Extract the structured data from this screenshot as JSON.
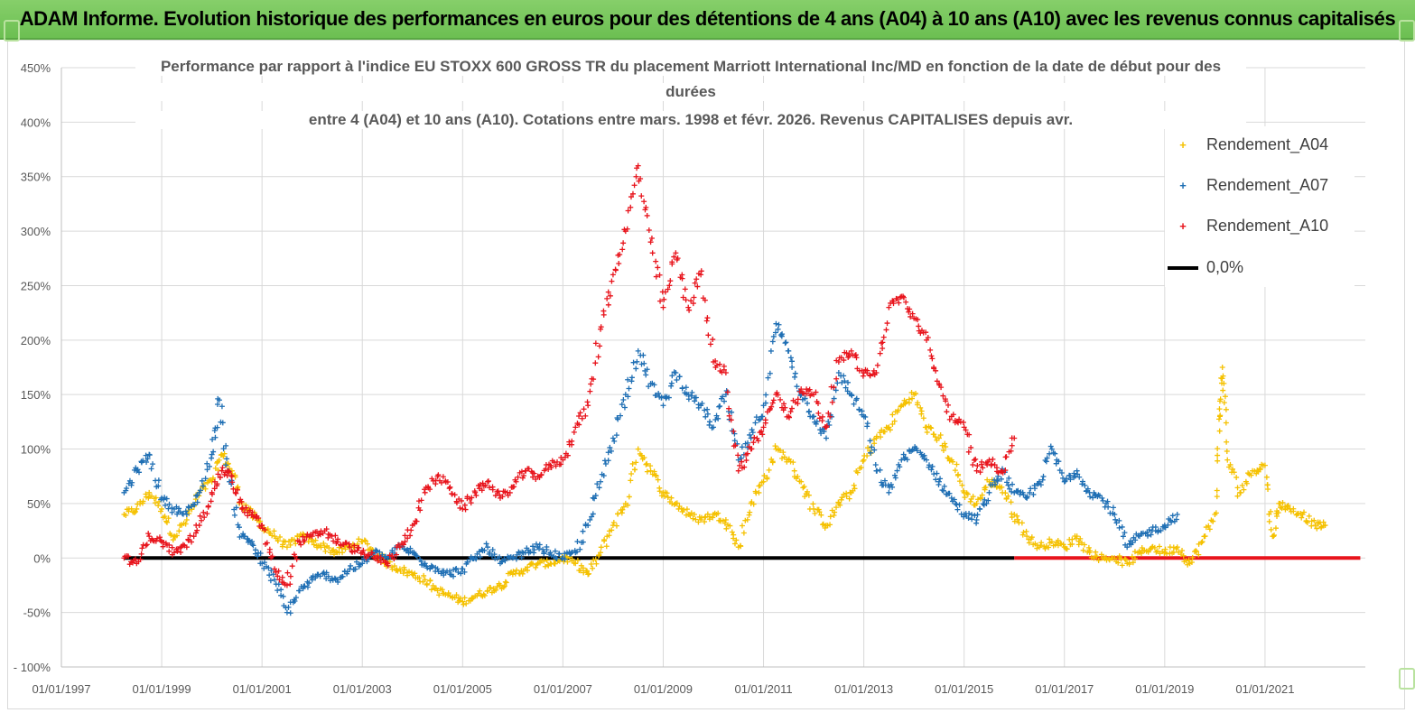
{
  "page": {
    "banner_title": "ADAM Informe. Evolution historique des performances en euros pour des détentions de 4 ans (A04) à 10 ans (A10) avec les revenus connus capitalisés"
  },
  "chart_data": {
    "type": "scatter",
    "title_lines": [
      "Performance par rapport à l'indice EU STOXX 600 GROSS TR  du placement Marriott International Inc/MD en fonction de la date de début pour des",
      "durées",
      "entre 4 (A04) et 10 ans (A10). Cotations entre mars. 1998 et févr. 2026. Revenus CAPITALISES depuis avr."
    ],
    "xlabel": "",
    "ylabel": "",
    "xlim": [
      1997.0,
      2023.0
    ],
    "ylim": [
      -100,
      450
    ],
    "y_ticks": [
      -100,
      -50,
      0,
      50,
      100,
      150,
      200,
      250,
      300,
      350,
      400,
      450
    ],
    "y_tick_labels": [
      "- 100%",
      "-50%",
      "0%",
      "50%",
      "100%",
      "150%",
      "200%",
      "250%",
      "300%",
      "350%",
      "400%",
      "450%"
    ],
    "x_ticks": [
      1997,
      1999,
      2001,
      2003,
      2005,
      2007,
      2009,
      2011,
      2013,
      2015,
      2017,
      2019,
      2021
    ],
    "x_tick_labels": [
      "01/01/1997",
      "01/01/1999",
      "01/01/2001",
      "01/01/2003",
      "01/01/2005",
      "01/01/2007",
      "01/01/2009",
      "01/01/2011",
      "01/01/2013",
      "01/01/2015",
      "01/01/2017",
      "01/01/2019",
      "01/01/2021"
    ],
    "grid": true,
    "legend_position": "top-right",
    "series": [
      {
        "name": "Rendement_A04",
        "color": "#f5c100",
        "marker": "+",
        "points": [
          [
            1998.25,
            40
          ],
          [
            1998.5,
            45
          ],
          [
            1998.75,
            60
          ],
          [
            1999.0,
            45
          ],
          [
            1999.25,
            20
          ],
          [
            1999.5,
            35
          ],
          [
            1999.75,
            60
          ],
          [
            2000.0,
            70
          ],
          [
            2000.2,
            95
          ],
          [
            2000.4,
            80
          ],
          [
            2000.6,
            50
          ],
          [
            2000.8,
            40
          ],
          [
            2001.0,
            30
          ],
          [
            2001.25,
            20
          ],
          [
            2001.5,
            10
          ],
          [
            2001.75,
            20
          ],
          [
            2002.0,
            15
          ],
          [
            2002.25,
            10
          ],
          [
            2002.5,
            5
          ],
          [
            2002.75,
            10
          ],
          [
            2003.0,
            15
          ],
          [
            2003.25,
            5
          ],
          [
            2003.5,
            -5
          ],
          [
            2003.75,
            -10
          ],
          [
            2004.0,
            -15
          ],
          [
            2004.25,
            -20
          ],
          [
            2004.5,
            -30
          ],
          [
            2004.75,
            -35
          ],
          [
            2005.0,
            -40
          ],
          [
            2005.25,
            -35
          ],
          [
            2005.5,
            -30
          ],
          [
            2005.75,
            -25
          ],
          [
            2006.0,
            -15
          ],
          [
            2006.25,
            -10
          ],
          [
            2006.5,
            -5
          ],
          [
            2006.75,
            -5
          ],
          [
            2007.0,
            0
          ],
          [
            2007.25,
            -5
          ],
          [
            2007.5,
            -15
          ],
          [
            2007.75,
            5
          ],
          [
            2008.0,
            30
          ],
          [
            2008.25,
            50
          ],
          [
            2008.5,
            100
          ],
          [
            2008.75,
            80
          ],
          [
            2009.0,
            60
          ],
          [
            2009.25,
            50
          ],
          [
            2009.5,
            40
          ],
          [
            2009.75,
            35
          ],
          [
            2010.0,
            40
          ],
          [
            2010.25,
            35
          ],
          [
            2010.5,
            10
          ],
          [
            2010.75,
            50
          ],
          [
            2011.0,
            70
          ],
          [
            2011.25,
            100
          ],
          [
            2011.5,
            90
          ],
          [
            2011.75,
            70
          ],
          [
            2012.0,
            45
          ],
          [
            2012.25,
            30
          ],
          [
            2012.5,
            50
          ],
          [
            2012.75,
            60
          ],
          [
            2013.0,
            90
          ],
          [
            2013.25,
            110
          ],
          [
            2013.5,
            120
          ],
          [
            2013.75,
            140
          ],
          [
            2014.0,
            150
          ],
          [
            2014.25,
            120
          ],
          [
            2014.5,
            110
          ],
          [
            2014.75,
            90
          ],
          [
            2015.0,
            60
          ],
          [
            2015.25,
            50
          ],
          [
            2015.5,
            70
          ],
          [
            2015.75,
            65
          ],
          [
            2016.0,
            40
          ],
          [
            2016.25,
            20
          ],
          [
            2016.5,
            10
          ],
          [
            2016.75,
            15
          ],
          [
            2017.0,
            10
          ],
          [
            2017.25,
            20
          ],
          [
            2017.5,
            5
          ],
          [
            2017.75,
            0
          ],
          [
            2018.0,
            0
          ],
          [
            2018.25,
            -5
          ],
          [
            2018.5,
            5
          ],
          [
            2018.75,
            10
          ],
          [
            2019.0,
            5
          ],
          [
            2019.25,
            10
          ],
          [
            2019.5,
            -5
          ],
          [
            2019.75,
            15
          ],
          [
            2020.0,
            40
          ],
          [
            2020.1,
            130
          ],
          [
            2020.15,
            175
          ],
          [
            2020.25,
            90
          ],
          [
            2020.5,
            60
          ],
          [
            2020.75,
            80
          ],
          [
            2021.0,
            85
          ],
          [
            2021.15,
            20
          ],
          [
            2021.3,
            50
          ],
          [
            2021.5,
            45
          ],
          [
            2021.75,
            40
          ],
          [
            2022.0,
            30
          ],
          [
            2022.2,
            30
          ]
        ]
      },
      {
        "name": "Rendement_A07",
        "color": "#1f6fb4",
        "marker": "+",
        "points": [
          [
            1998.25,
            60
          ],
          [
            1998.5,
            80
          ],
          [
            1998.75,
            95
          ],
          [
            1999.0,
            55
          ],
          [
            1999.25,
            45
          ],
          [
            1999.5,
            40
          ],
          [
            1999.75,
            60
          ],
          [
            2000.0,
            95
          ],
          [
            2000.15,
            145
          ],
          [
            2000.35,
            70
          ],
          [
            2000.6,
            20
          ],
          [
            2000.8,
            15
          ],
          [
            2001.0,
            -5
          ],
          [
            2001.25,
            -20
          ],
          [
            2001.5,
            -50
          ],
          [
            2001.75,
            -30
          ],
          [
            2002.0,
            -20
          ],
          [
            2002.25,
            -15
          ],
          [
            2002.5,
            -20
          ],
          [
            2002.75,
            -10
          ],
          [
            2003.0,
            -5
          ],
          [
            2003.25,
            5
          ],
          [
            2003.5,
            0
          ],
          [
            2003.75,
            10
          ],
          [
            2004.0,
            5
          ],
          [
            2004.25,
            -5
          ],
          [
            2004.5,
            -10
          ],
          [
            2004.75,
            -15
          ],
          [
            2005.0,
            -10
          ],
          [
            2005.25,
            0
          ],
          [
            2005.5,
            10
          ],
          [
            2005.75,
            -5
          ],
          [
            2006.0,
            0
          ],
          [
            2006.25,
            5
          ],
          [
            2006.5,
            10
          ],
          [
            2006.75,
            5
          ],
          [
            2007.0,
            0
          ],
          [
            2007.25,
            5
          ],
          [
            2007.5,
            30
          ],
          [
            2007.75,
            70
          ],
          [
            2008.0,
            110
          ],
          [
            2008.25,
            150
          ],
          [
            2008.5,
            190
          ],
          [
            2008.75,
            160
          ],
          [
            2009.0,
            140
          ],
          [
            2009.25,
            170
          ],
          [
            2009.5,
            150
          ],
          [
            2009.75,
            140
          ],
          [
            2010.0,
            120
          ],
          [
            2010.25,
            150
          ],
          [
            2010.5,
            90
          ],
          [
            2010.75,
            110
          ],
          [
            2011.0,
            140
          ],
          [
            2011.25,
            215
          ],
          [
            2011.5,
            190
          ],
          [
            2011.75,
            150
          ],
          [
            2012.0,
            130
          ],
          [
            2012.25,
            110
          ],
          [
            2012.5,
            170
          ],
          [
            2012.75,
            150
          ],
          [
            2013.0,
            130
          ],
          [
            2013.25,
            80
          ],
          [
            2013.5,
            60
          ],
          [
            2013.75,
            90
          ],
          [
            2014.0,
            100
          ],
          [
            2014.25,
            90
          ],
          [
            2014.5,
            70
          ],
          [
            2014.75,
            55
          ],
          [
            2015.0,
            40
          ],
          [
            2015.25,
            35
          ],
          [
            2015.5,
            60
          ],
          [
            2015.75,
            80
          ],
          [
            2016.0,
            60
          ],
          [
            2016.25,
            55
          ],
          [
            2016.5,
            70
          ],
          [
            2016.75,
            100
          ],
          [
            2017.0,
            70
          ],
          [
            2017.25,
            80
          ],
          [
            2017.5,
            60
          ],
          [
            2017.75,
            55
          ],
          [
            2018.0,
            40
          ],
          [
            2018.25,
            10
          ],
          [
            2018.5,
            20
          ],
          [
            2018.75,
            25
          ],
          [
            2019.0,
            30
          ],
          [
            2019.25,
            40
          ]
        ]
      },
      {
        "name": "Rendement_A10",
        "color": "#e8141c",
        "marker": "+",
        "points": [
          [
            1998.25,
            0
          ],
          [
            1998.5,
            -5
          ],
          [
            1998.75,
            20
          ],
          [
            1999.0,
            15
          ],
          [
            1999.25,
            5
          ],
          [
            1999.5,
            10
          ],
          [
            1999.75,
            30
          ],
          [
            2000.0,
            60
          ],
          [
            2000.2,
            80
          ],
          [
            2000.4,
            75
          ],
          [
            2000.6,
            45
          ],
          [
            2000.8,
            40
          ],
          [
            2001.0,
            30
          ],
          [
            2001.25,
            -10
          ],
          [
            2001.5,
            -25
          ],
          [
            2001.75,
            15
          ],
          [
            2002.0,
            20
          ],
          [
            2002.25,
            25
          ],
          [
            2002.5,
            15
          ],
          [
            2002.75,
            10
          ],
          [
            2003.0,
            5
          ],
          [
            2003.25,
            0
          ],
          [
            2003.5,
            -5
          ],
          [
            2003.75,
            10
          ],
          [
            2004.0,
            30
          ],
          [
            2004.25,
            60
          ],
          [
            2004.5,
            75
          ],
          [
            2004.75,
            65
          ],
          [
            2005.0,
            45
          ],
          [
            2005.25,
            60
          ],
          [
            2005.5,
            70
          ],
          [
            2005.75,
            55
          ],
          [
            2006.0,
            65
          ],
          [
            2006.25,
            80
          ],
          [
            2006.5,
            75
          ],
          [
            2006.75,
            85
          ],
          [
            2007.0,
            90
          ],
          [
            2007.25,
            120
          ],
          [
            2007.5,
            140
          ],
          [
            2007.75,
            210
          ],
          [
            2008.0,
            260
          ],
          [
            2008.25,
            300
          ],
          [
            2008.5,
            360
          ],
          [
            2008.75,
            290
          ],
          [
            2009.0,
            230
          ],
          [
            2009.25,
            280
          ],
          [
            2009.5,
            230
          ],
          [
            2009.75,
            260
          ],
          [
            2010.0,
            180
          ],
          [
            2010.25,
            170
          ],
          [
            2010.5,
            80
          ],
          [
            2010.75,
            100
          ],
          [
            2011.0,
            120
          ],
          [
            2011.25,
            150
          ],
          [
            2011.5,
            130
          ],
          [
            2011.75,
            155
          ],
          [
            2012.0,
            150
          ],
          [
            2012.25,
            120
          ],
          [
            2012.5,
            180
          ],
          [
            2012.75,
            190
          ],
          [
            2013.0,
            170
          ],
          [
            2013.25,
            170
          ],
          [
            2013.5,
            230
          ],
          [
            2013.75,
            240
          ],
          [
            2014.0,
            220
          ],
          [
            2014.25,
            200
          ],
          [
            2014.5,
            160
          ],
          [
            2014.75,
            130
          ],
          [
            2015.0,
            120
          ],
          [
            2015.25,
            80
          ],
          [
            2015.5,
            90
          ],
          [
            2015.75,
            80
          ],
          [
            2016.0,
            110
          ]
        ]
      },
      {
        "name": "0,0%",
        "color": "#000000",
        "marker": "line",
        "points": [
          [
            1998.25,
            0
          ],
          [
            2016.0,
            0
          ]
        ]
      }
    ],
    "zero_tail": {
      "color": "#e8141c",
      "x_start": 2016.0,
      "x_end": 2022.9,
      "y": 0
    }
  }
}
